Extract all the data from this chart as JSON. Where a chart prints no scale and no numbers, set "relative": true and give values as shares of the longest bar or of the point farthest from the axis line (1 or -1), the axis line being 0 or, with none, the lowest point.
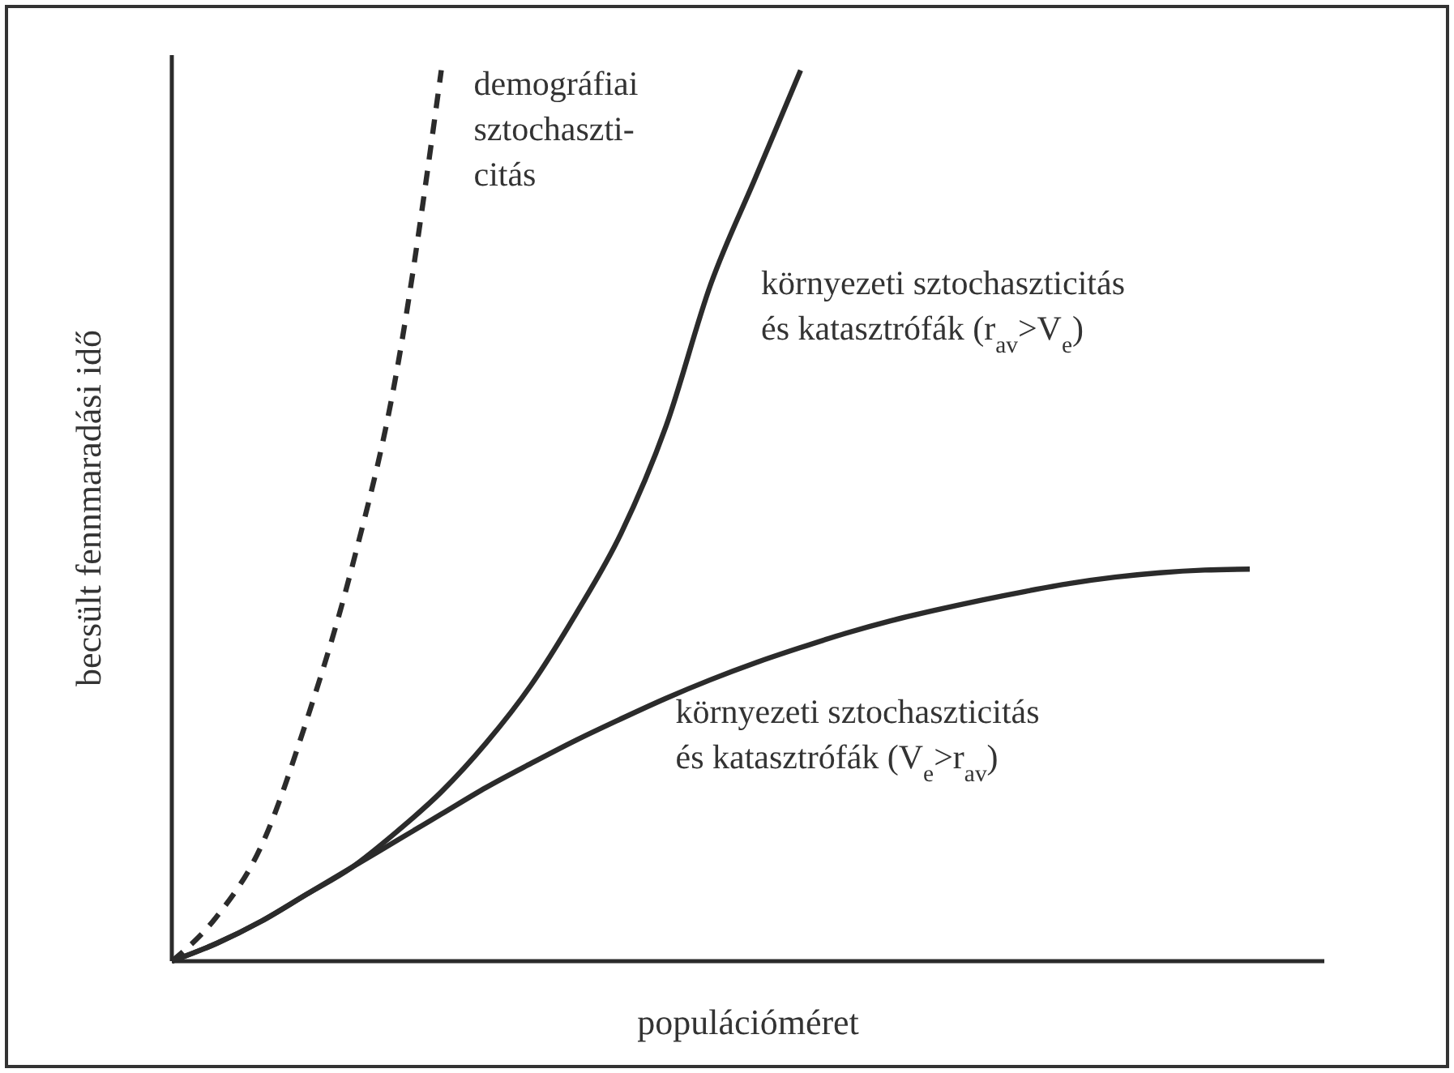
{
  "chart_data": {
    "type": "line",
    "relative": true,
    "xlabel": "populációméret",
    "ylabel": "becsült fennmaradási idő",
    "categories": [
      null,
      null,
      null,
      null,
      null,
      null,
      null,
      null,
      null,
      null,
      null,
      null,
      null,
      null,
      null,
      null,
      null,
      null,
      null,
      null,
      null,
      null,
      null,
      null,
      null
    ],
    "legend": false,
    "marker": "none",
    "series": [
      {
        "name": "demográfiai sztochaszti-citás",
        "color": "#2b2b2b",
        "line_style": "dashed",
        "values": [
          0,
          0.05,
          0.13,
          0.27,
          0.44,
          0.66,
          1.0,
          null,
          null,
          null,
          null,
          null,
          null,
          null,
          null,
          null,
          null,
          null,
          null,
          null,
          null,
          null,
          null,
          null,
          null
        ]
      },
      {
        "name": "környezeti sztochaszticitás és katasztrófák (r$_{av}$>V$_{e}$)",
        "color": "#2b2b2b",
        "line_style": "solid",
        "values": [
          0,
          0.02,
          0.045,
          0.075,
          0.105,
          0.145,
          0.19,
          0.245,
          0.31,
          0.39,
          0.48,
          0.6,
          0.76,
          0.88,
          1.0,
          null,
          null,
          null,
          null,
          null,
          null,
          null,
          null,
          null,
          null
        ]
      },
      {
        "name": "környezeti sztochaszticitás és katasztrófák (V$_{e}$>r$_{av}$)",
        "color": "#2b2b2b",
        "line_style": "solid",
        "values": [
          0,
          0.02,
          0.045,
          0.075,
          0.105,
          0.135,
          0.165,
          0.195,
          0.222,
          0.248,
          0.272,
          0.295,
          0.316,
          0.335,
          0.352,
          0.368,
          0.382,
          0.394,
          0.405,
          0.415,
          0.424,
          0.431,
          0.436,
          0.439,
          0.44
        ]
      }
    ]
  }
}
